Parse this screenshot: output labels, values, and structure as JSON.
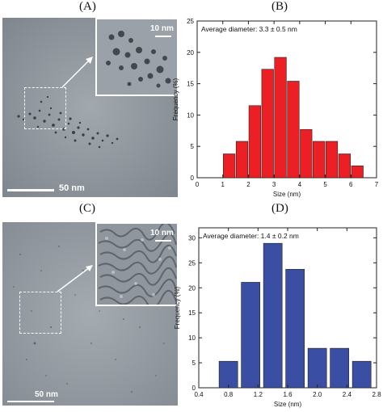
{
  "panels": {
    "a": {
      "label": "(A)",
      "main_scale_label": "50 nm",
      "inset_scale_label": "10 nm"
    },
    "b": {
      "label": "(B)"
    },
    "c": {
      "label": "(C)",
      "main_scale_label": "50 nm",
      "inset_scale_label": "10 nm"
    },
    "d": {
      "label": "(D)"
    }
  },
  "chart_data": [
    {
      "type": "bar",
      "annotation": "Average diameter: 3.3 ± 0.5 nm",
      "xlabel": "Size (nm)",
      "ylabel": "Frequency (%)",
      "x": [
        1.25,
        1.75,
        2.25,
        2.75,
        3.25,
        3.75,
        4.25,
        4.75,
        5.25,
        5.75,
        6.25
      ],
      "values": [
        3.8,
        5.8,
        11.5,
        17.3,
        19.2,
        15.4,
        7.7,
        5.8,
        5.8,
        3.8,
        1.9
      ],
      "xlim": [
        0,
        7
      ],
      "ylim": [
        0,
        25
      ],
      "xticks": [
        0,
        1,
        2,
        3,
        4,
        5,
        6,
        7
      ],
      "yticks": [
        0,
        5,
        10,
        15,
        20,
        25
      ],
      "bar_color": "#ec2024",
      "grid": false
    },
    {
      "type": "bar",
      "annotation": "Average diameter: 1.4 ± 0.2 nm",
      "xlabel": "Size (nm)",
      "ylabel": "Frequency (%)",
      "x": [
        0.8,
        1.1,
        1.4,
        1.7,
        2.0,
        2.3,
        2.6
      ],
      "values": [
        5.3,
        21.1,
        28.9,
        23.7,
        7.9,
        7.9,
        5.3
      ],
      "xlim": [
        0.4,
        2.8
      ],
      "ylim": [
        0,
        32
      ],
      "xticks": [
        "0.4",
        "0.8",
        "1.2",
        "1.6",
        "2.0",
        "2.4",
        "2.8"
      ],
      "yticks": [
        0,
        5,
        10,
        15,
        20,
        25,
        30
      ],
      "bar_color": "#3a4ea3",
      "grid": false
    }
  ]
}
